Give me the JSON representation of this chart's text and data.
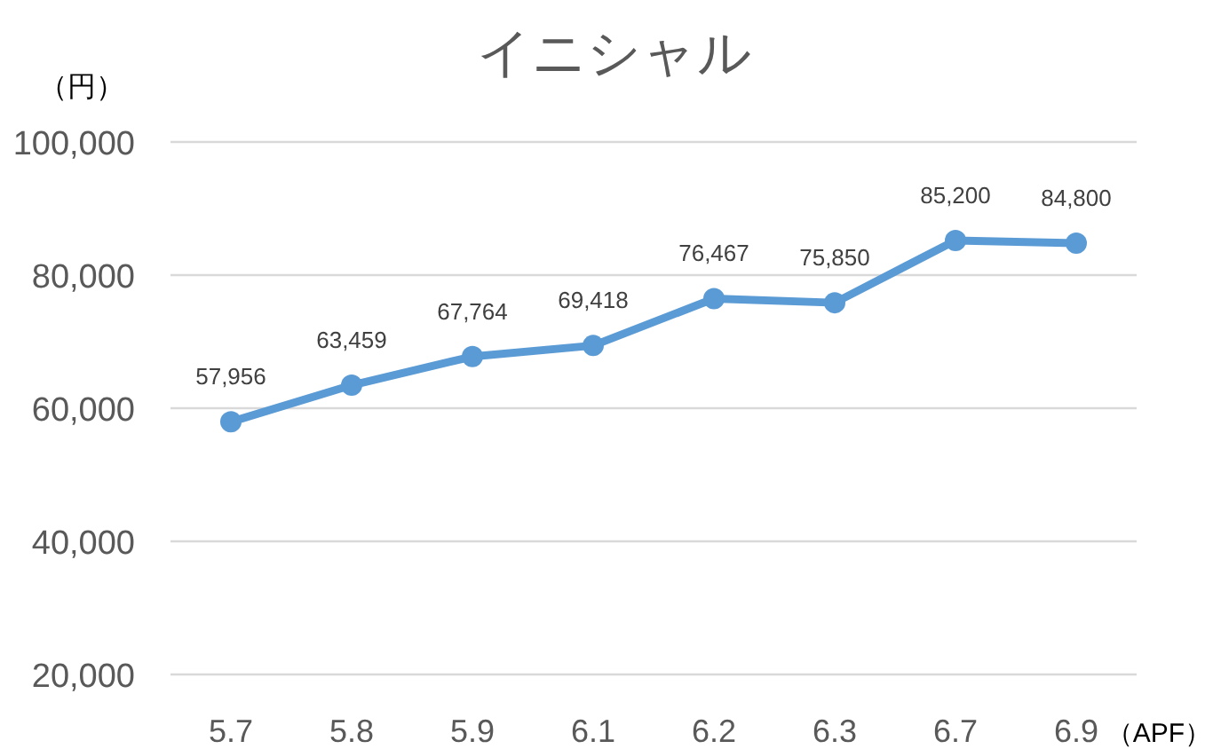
{
  "chart_data": {
    "type": "line",
    "title": "イニシャル",
    "ylabel": "（円）",
    "xlabel": "（APF）",
    "categories": [
      "5.7",
      "5.8",
      "5.9",
      "6.1",
      "6.2",
      "6.3",
      "6.7",
      "6.9"
    ],
    "values": [
      57956,
      63459,
      67764,
      69418,
      76467,
      75850,
      85200,
      84800
    ],
    "value_labels": [
      "57,956",
      "63,459",
      "67,764",
      "69,418",
      "76,467",
      "75,850",
      "85,200",
      "84,800"
    ],
    "color": "#5b9bd5",
    "marker": "circle",
    "line_style": "solid",
    "grid": "y",
    "ylim": [
      20000,
      100000
    ],
    "yticks": [
      {
        "value": 20000,
        "label": "20,000"
      },
      {
        "value": 40000,
        "label": "40,000"
      },
      {
        "value": 60000,
        "label": "60,000"
      },
      {
        "value": 80000,
        "label": "80,000"
      },
      {
        "value": 100000,
        "label": "100,000"
      }
    ]
  }
}
